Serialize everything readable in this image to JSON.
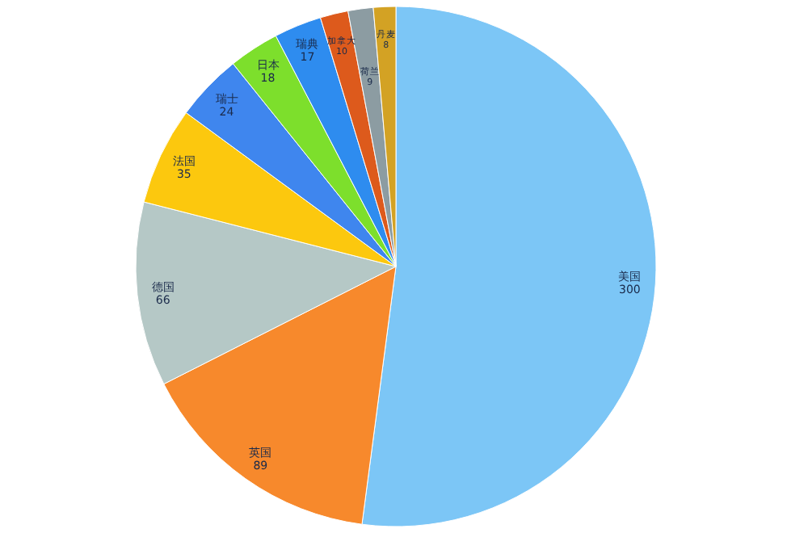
{
  "chart_data": {
    "type": "pie",
    "categories": [
      "美国",
      "英国",
      "德国",
      "法国",
      "瑞士",
      "日本",
      "瑞典",
      "加拿大",
      "荷兰",
      "丹麦"
    ],
    "values": [
      300,
      89,
      66,
      35,
      24,
      18,
      17,
      10,
      9,
      8
    ],
    "colors": [
      "#7cc6f6",
      "#f7892c",
      "#b5c8c6",
      "#fcc80e",
      "#3f86ee",
      "#7ddf2c",
      "#2e8cef",
      "#dd5a1c",
      "#8c9ca2",
      "#d3a224"
    ],
    "data_labels": true,
    "legend": false
  }
}
